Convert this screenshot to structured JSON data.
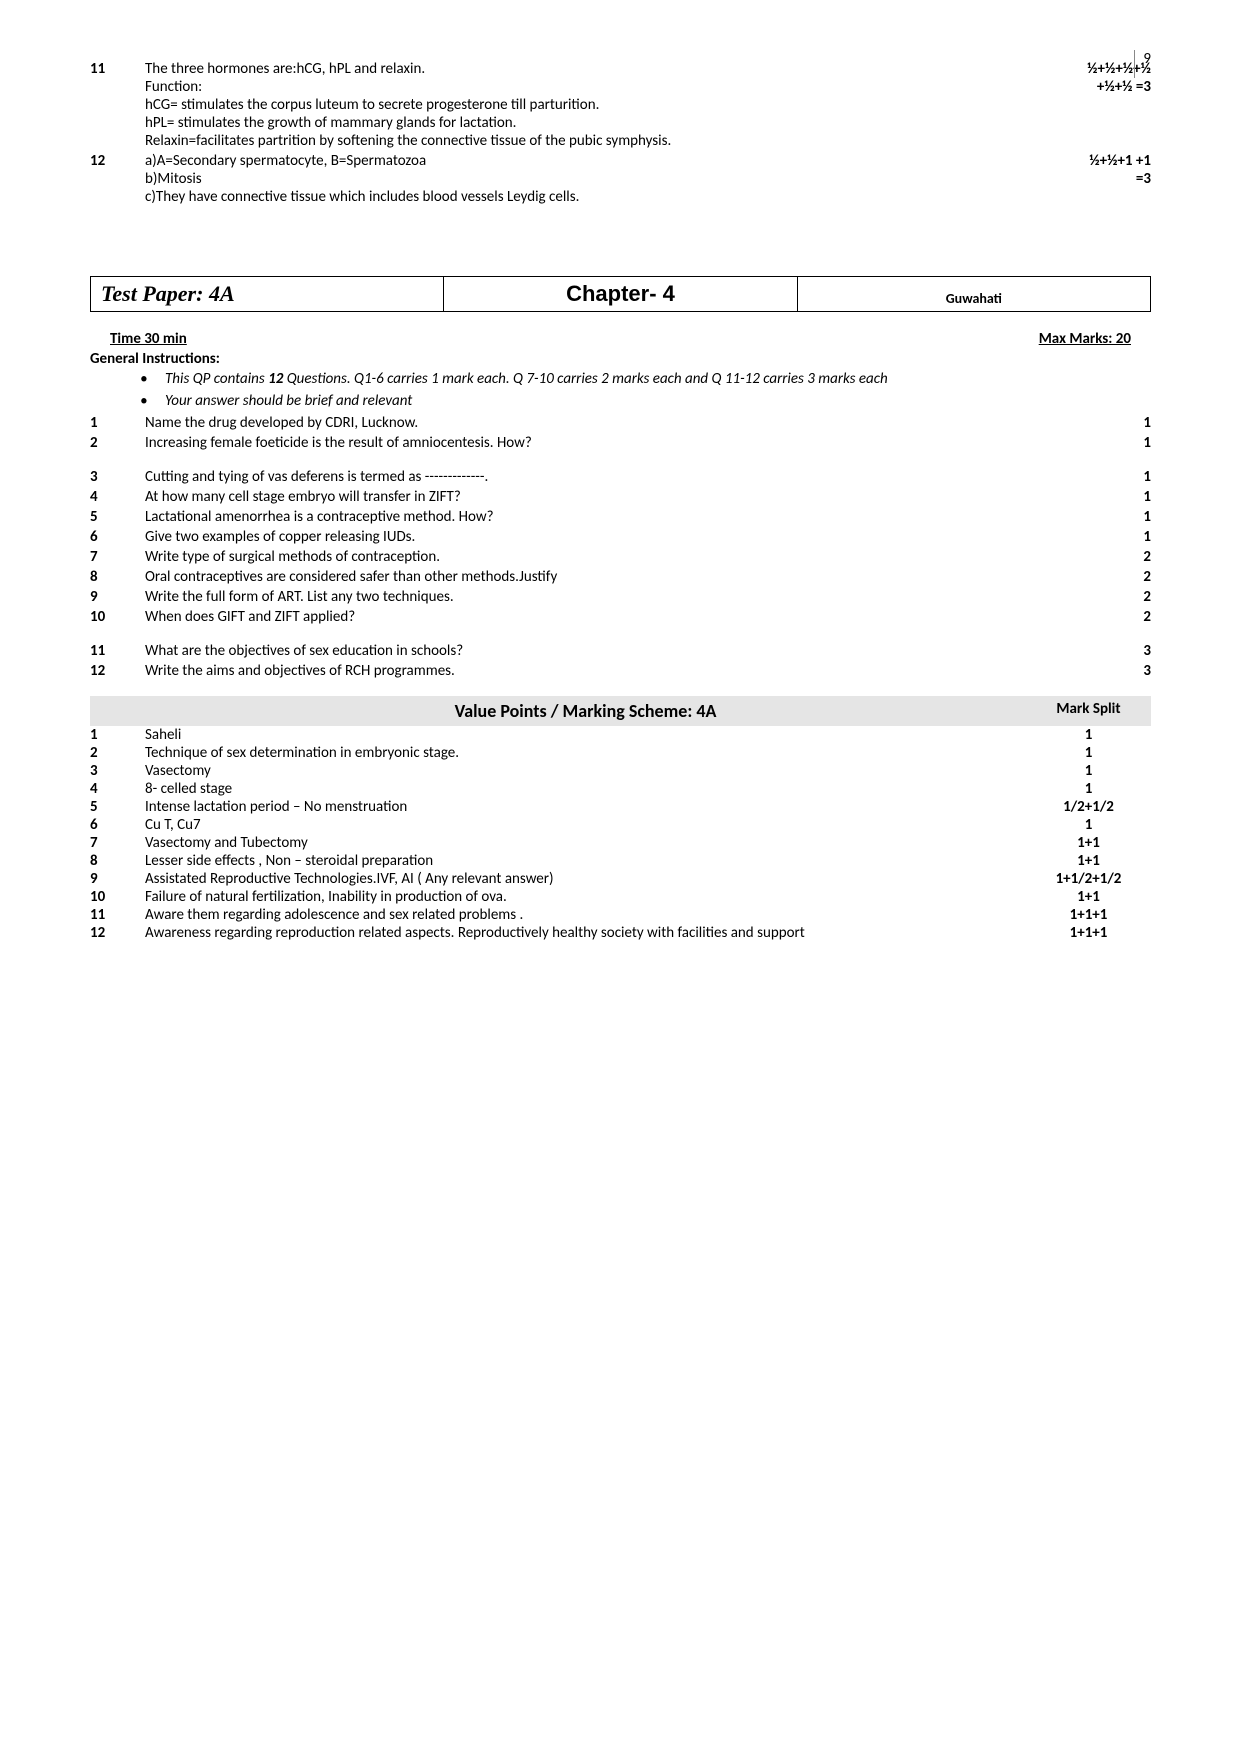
{
  "page_number": "9",
  "top_answers": [
    {
      "num": "11",
      "lines": [
        "The three hormones are:hCG, hPL and relaxin.",
        "Function:",
        "hCG= stimulates the corpus luteum to secrete progesterone till parturition.",
        "hPL= stimulates the growth of mammary glands for lactation.",
        "Relaxin=facilitates partrition by softening the connective tissue of the pubic symphysis."
      ],
      "marks": [
        "½+½+½+½",
        "+½+½ =3"
      ]
    },
    {
      "num": "12",
      "lines": [
        "a)A=Secondary spermatocyte, B=Spermatozoa",
        "b)Mitosis",
        "c)They have connective tissue which includes blood vessels Leydig cells."
      ],
      "marks": [
        "½+½+1 +1",
        "=3"
      ]
    }
  ],
  "header": {
    "test_paper": "Test Paper:  4A",
    "chapter": "Chapter- 4",
    "location": "Guwahati"
  },
  "time_marks": {
    "time": "Time 30 min",
    "marks": "Max Marks: 20"
  },
  "gen_instructions_label": "General Instructions:",
  "bullets": [
    "This QP contains 12 Questions. Q1-6 carries 1 mark each. Q 7-10  carries 2 marks each and  Q 11-12 carries 3 marks each",
    "Your answer should be brief and relevant"
  ],
  "questions": [
    {
      "num": "1",
      "text": "Name the drug developed by CDRI, Lucknow.",
      "mark": "1"
    },
    {
      "num": "2",
      "text": "Increasing female foeticide is the result of amniocentesis. How?",
      "mark": "1"
    },
    {
      "num": "3",
      "text": "Cutting and tying of vas deferens is termed as -------------.",
      "mark": "1"
    },
    {
      "num": "4",
      "text": "At how many cell stage embryo will transfer in ZIFT?",
      "mark": "1"
    },
    {
      "num": "5",
      "text": "Lactational  amenorrhea is a contraceptive method. How?",
      "mark": "1"
    },
    {
      "num": "6",
      "text": "Give two examples of copper releasing IUDs.",
      "mark": "1"
    },
    {
      "num": "7",
      "text": "Write type of  surgical methods of contraception.",
      "mark": "2"
    },
    {
      "num": "8",
      "text": "Oral contraceptives are considered safer than other methods.Justify",
      "mark": "2"
    },
    {
      "num": "9",
      "text": "Write the full form of ART. List any two techniques.",
      "mark": "2"
    },
    {
      "num": "10",
      "text": "When does GIFT and ZIFT applied?",
      "mark": "2"
    },
    {
      "num": "11",
      "text": "What are the objectives of sex education in schools?",
      "mark": "3"
    },
    {
      "num": "12",
      "text": "Write the aims and objectives of RCH programmes.",
      "mark": "3"
    }
  ],
  "scheme_header": {
    "title": "Value Points / Marking Scheme: 4A",
    "mark_label": "Mark Split"
  },
  "scheme": [
    {
      "num": "1",
      "text": "Saheli",
      "mark": "1"
    },
    {
      "num": "2",
      "text": "Technique of sex determination in embryonic stage.",
      "mark": "1"
    },
    {
      "num": "3",
      "text": "Vasectomy",
      "mark": "1"
    },
    {
      "num": "4",
      "text": "8- celled stage",
      "mark": "1"
    },
    {
      "num": "5",
      "text": "  Intense lactation period – No menstruation",
      "mark": "1/2+1/2"
    },
    {
      "num": "6",
      "text": "Cu T, Cu7",
      "mark": "1"
    },
    {
      "num": "7",
      "text": "Vasectomy and Tubectomy",
      "mark": "1+1"
    },
    {
      "num": "8",
      "text": "Lesser side effects , Non – steroidal preparation",
      "mark": "1+1"
    },
    {
      "num": "9",
      "text": "Assistated  Reproductive Technologies.IVF, AI ( Any relevant answer)",
      "mark": "1+1/2+1/2"
    },
    {
      "num": "10",
      "text": "Failure of natural fertilization, Inability in production of ova.",
      "mark": "1+1"
    },
    {
      "num": "11",
      "text": "Aware them regarding adolescence and sex related  problems .",
      "mark": "1+1+1"
    },
    {
      "num": "12",
      "text": "Awareness regarding reproduction related aspects. Reproductively healthy society with facilities and support",
      "mark": "1+1+1"
    }
  ]
}
